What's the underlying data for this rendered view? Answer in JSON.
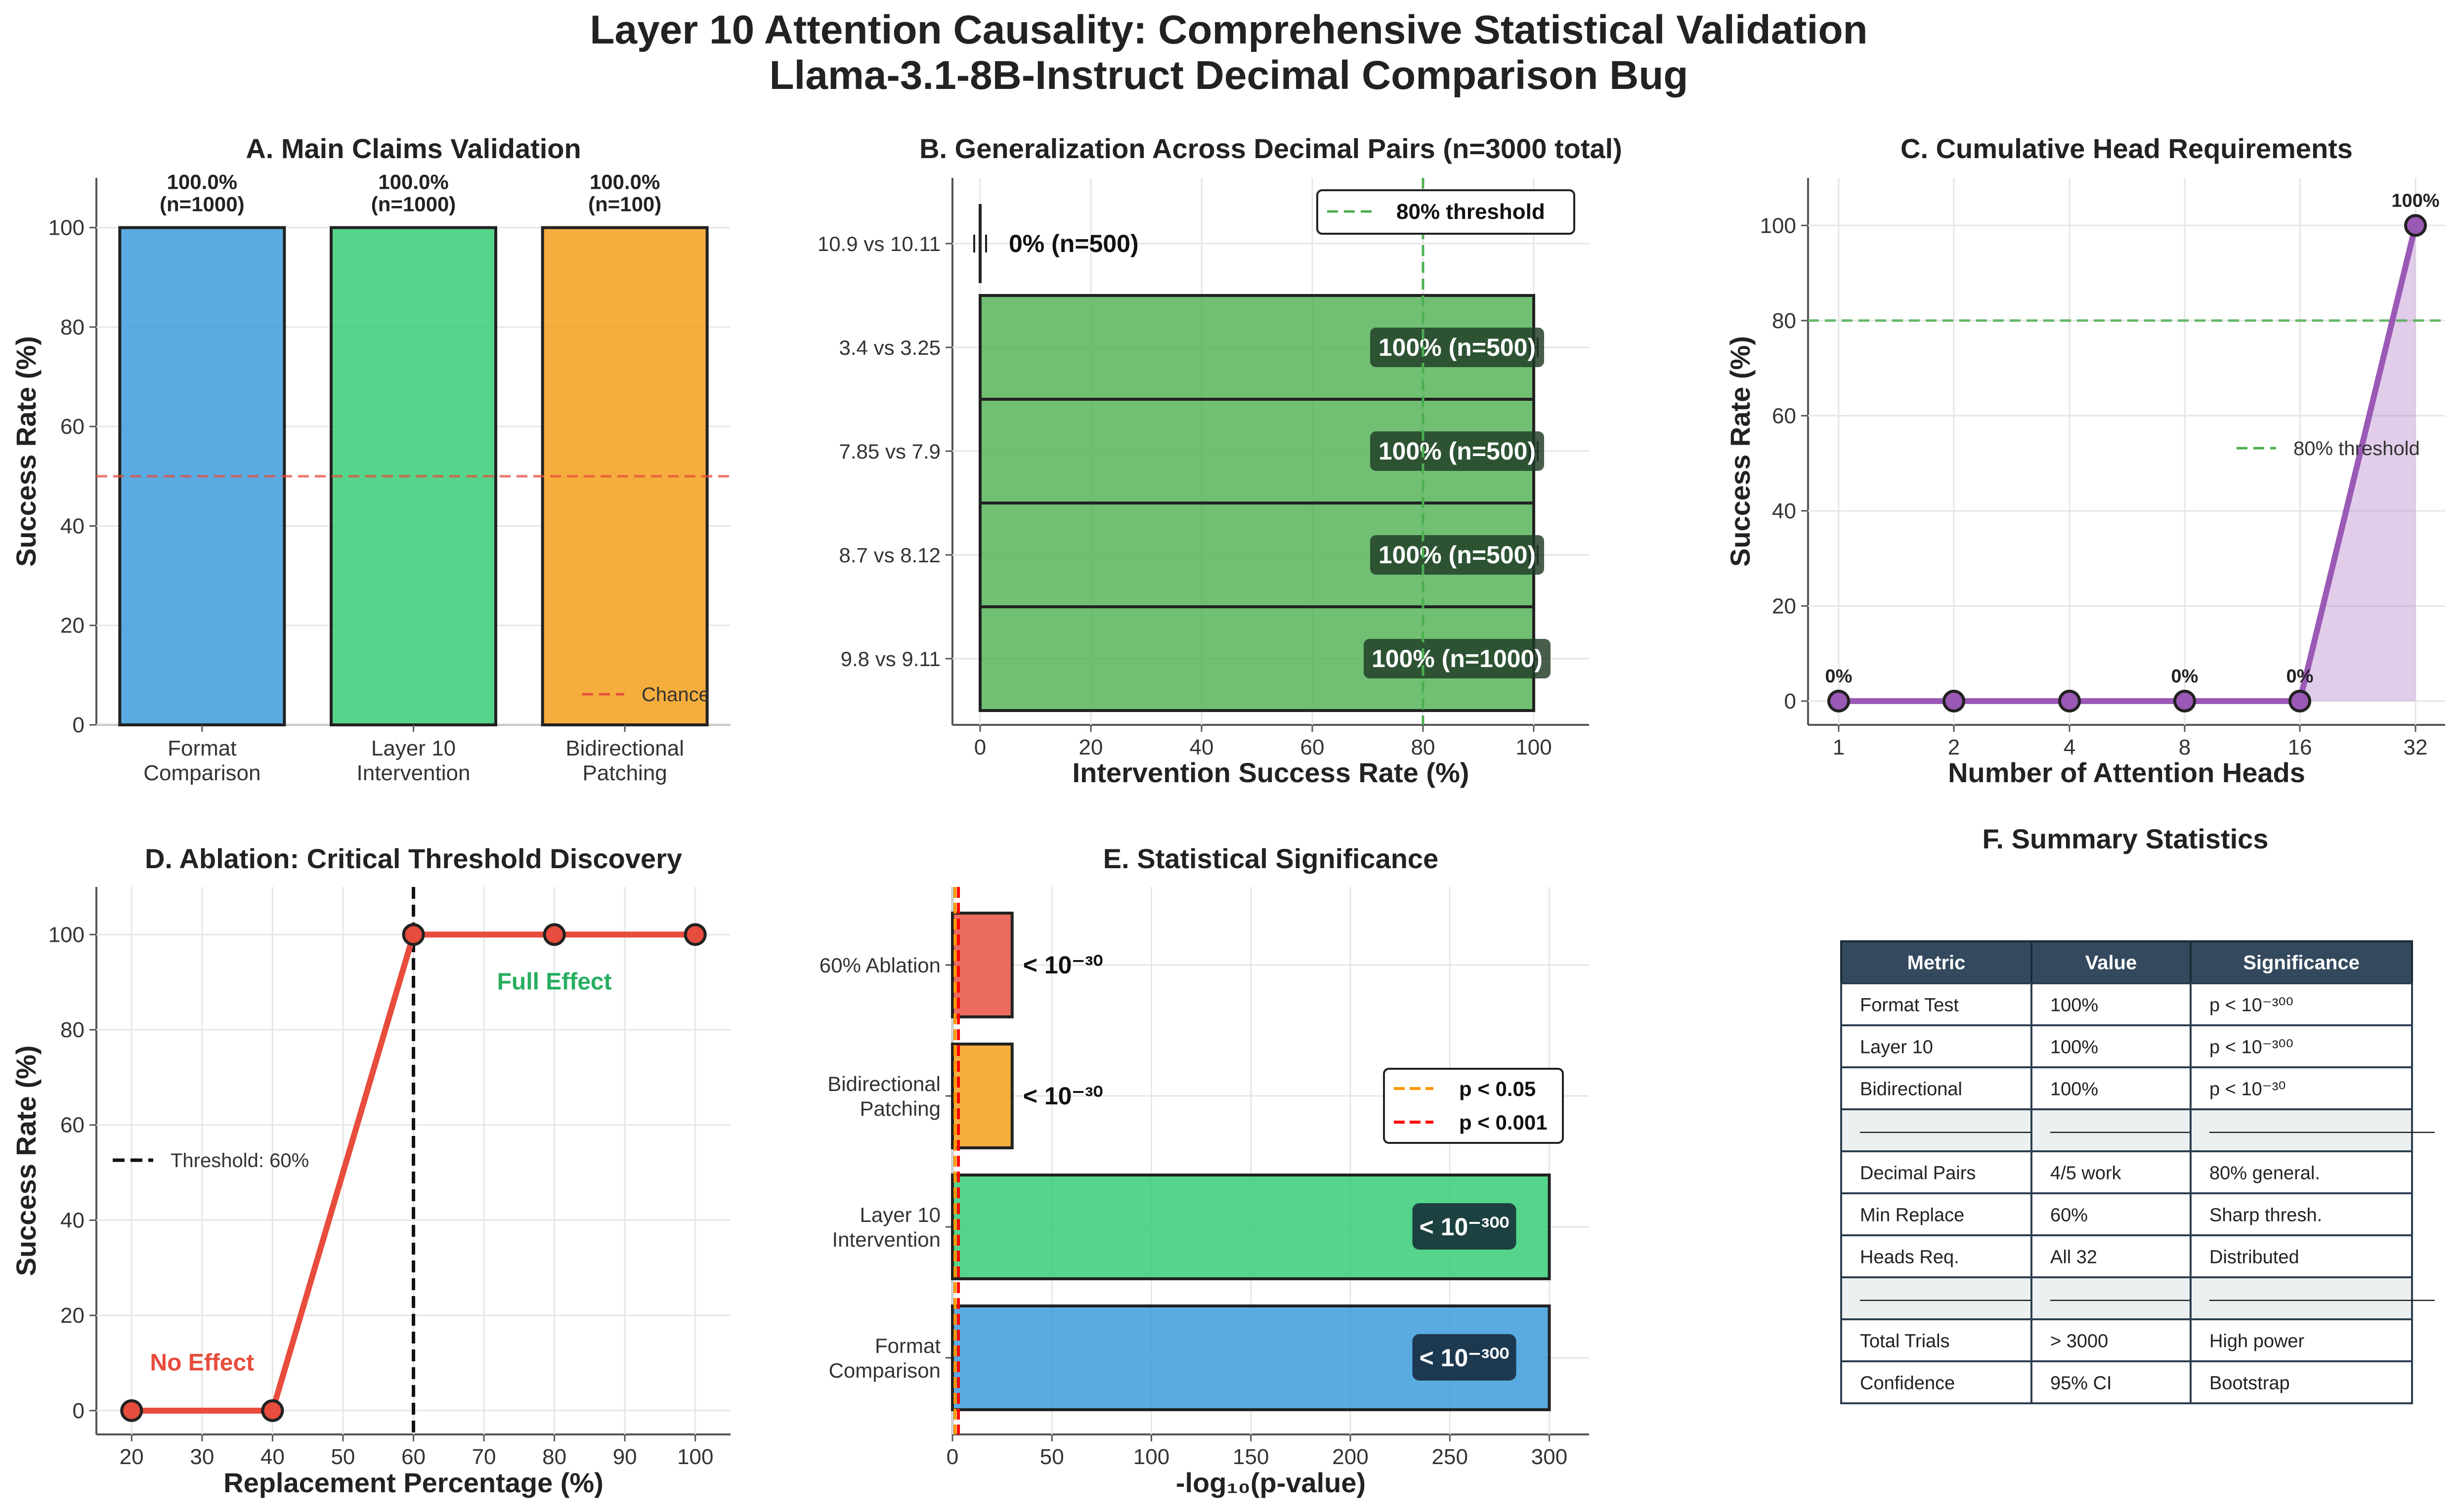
{
  "suptitle": {
    "line1": "Layer 10 Attention Causality: Comprehensive Statistical Validation",
    "line2": "Llama-3.1-8B-Instruct Decimal Comparison Bug"
  },
  "chart_data": [
    {
      "id": "A",
      "type": "bar",
      "title": "A. Main Claims Validation",
      "xlabel": "",
      "ylabel": "Success Rate (%)",
      "ylim": [
        0,
        110
      ],
      "yticks": [
        "0",
        "20",
        "40",
        "60",
        "80",
        "100"
      ],
      "categories": [
        [
          "Format",
          "Comparison"
        ],
        [
          "Layer 10",
          "Intervention"
        ],
        [
          "Bidirectional",
          "Patching"
        ]
      ],
      "values": [
        100,
        100,
        100
      ],
      "bar_labels": [
        [
          "100.0%",
          "(n=1000)"
        ],
        [
          "100.0%",
          "(n=1000)"
        ],
        [
          "100.0%",
          "(n=100)"
        ]
      ],
      "colors": [
        "#3498db",
        "#2ecc71",
        "#f39c12"
      ],
      "reference_line": {
        "y": 50,
        "label": "Chance",
        "color": "#e74c3c"
      },
      "legend": "lower right"
    },
    {
      "id": "B",
      "type": "bar",
      "orientation": "horizontal",
      "title": "B. Generalization Across Decimal Pairs (n=3000 total)",
      "xlabel": "Intervention Success Rate (%)",
      "ylabel": "",
      "xlim": [
        -5,
        110
      ],
      "xticks": [
        "0",
        "20",
        "40",
        "60",
        "80",
        "100"
      ],
      "categories": [
        "10.9 vs 10.11",
        "3.4 vs 3.25",
        "7.85 vs 7.9",
        "8.7 vs 8.12",
        "9.8 vs 9.11"
      ],
      "values": [
        0,
        100,
        100,
        100,
        100
      ],
      "bar_labels": [
        "0% (n=500)",
        "100% (n=500)",
        "100% (n=500)",
        "100% (n=500)",
        "100% (n=1000)"
      ],
      "color": "#4caf50",
      "reference_line": {
        "x": 80,
        "label": "80% threshold",
        "color": "#4caf50"
      },
      "legend": "top right"
    },
    {
      "id": "C",
      "type": "line",
      "title": "C. Cumulative Head Requirements",
      "xlabel": "Number of Attention Heads",
      "ylabel": "Success Rate (%)",
      "x": [
        "1",
        "2",
        "4",
        "8",
        "16",
        "32"
      ],
      "values": [
        0,
        0,
        0,
        0,
        0,
        100
      ],
      "point_labels": [
        "0%",
        "",
        "",
        "0%",
        "0%",
        "100%"
      ],
      "ylim": [
        -5,
        110
      ],
      "yticks": [
        "0",
        "20",
        "40",
        "60",
        "80",
        "100"
      ],
      "color": "#9b59b6",
      "reference_line": {
        "y": 80,
        "label": "80% threshold",
        "color": "#4caf50"
      },
      "legend": "center right"
    },
    {
      "id": "D",
      "type": "line",
      "title": "D. Ablation: Critical Threshold Discovery",
      "xlabel": "Replacement Percentage (%)",
      "ylabel": "Success Rate (%)",
      "x": [
        20,
        40,
        60,
        80,
        100
      ],
      "values": [
        0,
        0,
        100,
        100,
        100
      ],
      "xlim": [
        15,
        105
      ],
      "ylim": [
        -5,
        110
      ],
      "xticks": [
        "20",
        "30",
        "40",
        "50",
        "60",
        "70",
        "80",
        "90",
        "100"
      ],
      "yticks": [
        "0",
        "20",
        "40",
        "60",
        "80",
        "100"
      ],
      "color": "#e74c3c",
      "reference_line": {
        "x": 60,
        "label": "Threshold: 60%"
      },
      "annotations": [
        {
          "text": "No Effect",
          "x": 30,
          "y": 10,
          "color": "#e74c3c"
        },
        {
          "text": "Full Effect",
          "x": 80,
          "y": 90,
          "color": "#27ae60"
        }
      ],
      "legend": "center left"
    },
    {
      "id": "E",
      "type": "bar",
      "orientation": "horizontal",
      "title": "E. Statistical Significance",
      "xlabel": "-log₁₀(p-value)",
      "ylabel": "",
      "xlim": [
        0,
        320
      ],
      "xticks": [
        "0",
        "50",
        "100",
        "150",
        "200",
        "250",
        "300"
      ],
      "categories": [
        [
          "60% Ablation"
        ],
        [
          "Bidirectional",
          "Patching"
        ],
        [
          "Layer 10",
          "Intervention"
        ],
        [
          "Format",
          "Comparison"
        ]
      ],
      "values": [
        30,
        30,
        300,
        300
      ],
      "bar_labels": [
        "< 10⁻³⁰",
        "< 10⁻³⁰",
        "< 10⁻³⁰⁰",
        "< 10⁻³⁰⁰"
      ],
      "colors": [
        "#e74c3c",
        "#f39c12",
        "#2ecc71",
        "#3498db"
      ],
      "reference_lines": [
        {
          "x": 1.3,
          "label": "p < 0.05",
          "color": "#ff9800"
        },
        {
          "x": 3,
          "label": "p < 0.001",
          "color": "#ff0000"
        }
      ],
      "legend": "center right"
    },
    {
      "id": "F",
      "type": "table",
      "title": "F. Summary Statistics",
      "columns": [
        "Metric",
        "Value",
        "Significance"
      ],
      "rows": [
        [
          "Format Test",
          "100%",
          "p < 10⁻³⁰⁰"
        ],
        [
          "Layer 10",
          "100%",
          "p < 10⁻³⁰⁰"
        ],
        [
          "Bidirectional",
          "100%",
          "p < 10⁻³⁰"
        ],
        [
          "——————————",
          "————————",
          "————————————"
        ],
        [
          "Decimal Pairs",
          "4/5 work",
          "80% general."
        ],
        [
          "Min Replace",
          "60%",
          "Sharp thresh."
        ],
        [
          "Heads Req.",
          "All 32",
          "Distributed"
        ],
        [
          "——————————",
          "————————",
          "————————————"
        ],
        [
          "Total Trials",
          "> 3000",
          "High power"
        ],
        [
          "Confidence",
          "95% CI",
          "Bootstrap"
        ]
      ],
      "header_color": "#34495e",
      "separator_row_color": "#ecf0f1"
    }
  ]
}
